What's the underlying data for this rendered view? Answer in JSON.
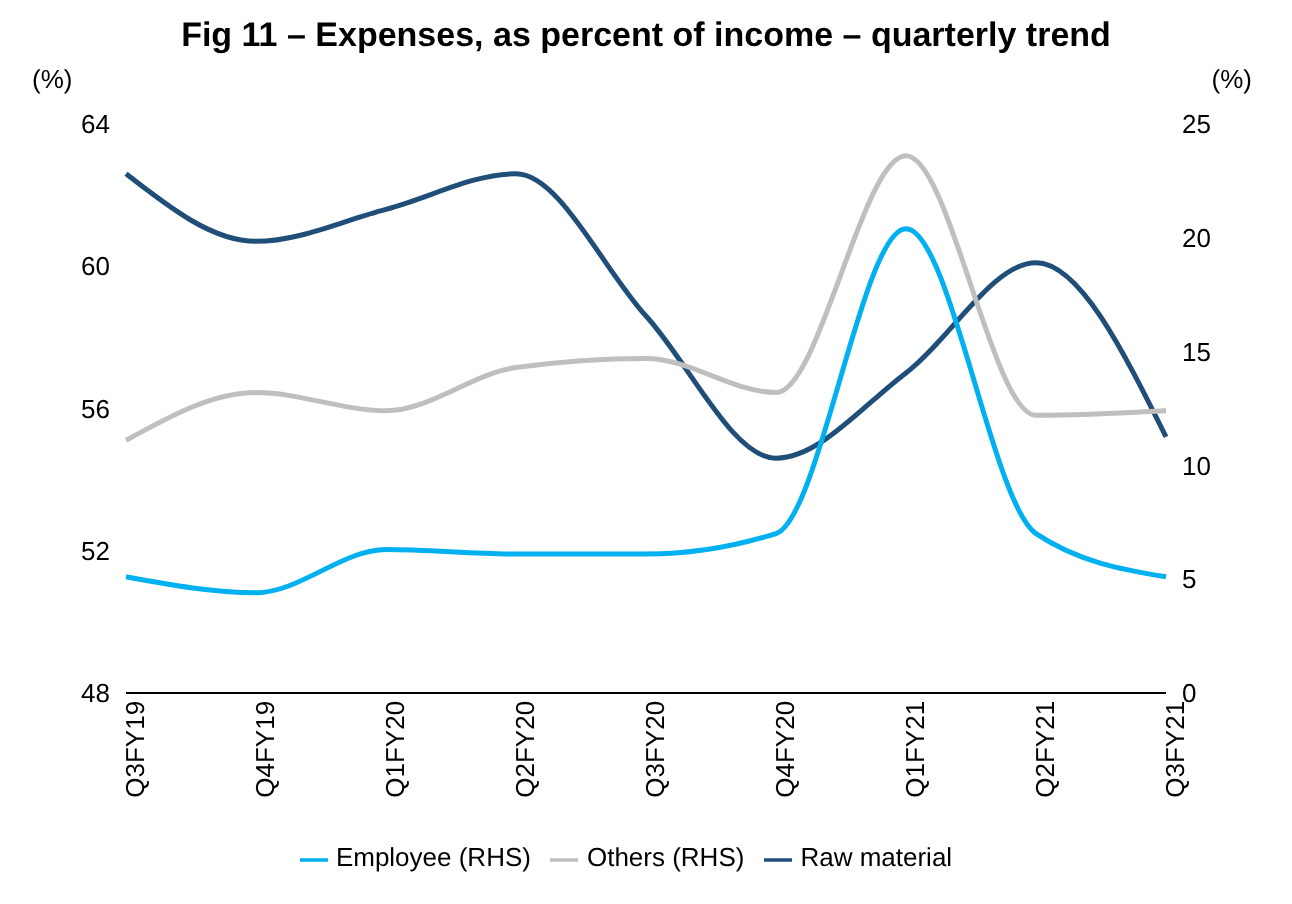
{
  "chart_data": {
    "type": "line",
    "title": "Fig 11 – Expenses, as percent of income – quarterly trend",
    "ylabel": "(%)",
    "y2label": "(%)",
    "categories": [
      "Q3FY19",
      "Q4FY19",
      "Q1FY20",
      "Q2FY20",
      "Q3FY20",
      "Q4FY20",
      "Q1FY21",
      "Q2FY21",
      "Q3FY21"
    ],
    "series": [
      {
        "name": "Raw material",
        "color": "#1f4e79",
        "values": [
          62.6,
          60.7,
          61.6,
          62.6,
          58.6,
          54.6,
          57.0,
          60.1,
          55.2
        ]
      },
      {
        "name": "Employee (RHS)",
        "color": "#00b0f0",
        "axis": "y2",
        "values": [
          5.1,
          4.4,
          6.3,
          6.1,
          6.1,
          7.0,
          20.4,
          7.0,
          5.1
        ]
      },
      {
        "name": "Others (RHS)",
        "color": "#bfbfbf",
        "axis": "y2",
        "values": [
          11.1,
          13.2,
          12.4,
          14.3,
          14.7,
          13.2,
          23.6,
          12.2,
          12.4
        ]
      }
    ],
    "ylim": [
      48,
      64
    ],
    "yticks": [
      48,
      52,
      56,
      60,
      64
    ],
    "y2lim": [
      0,
      25
    ],
    "y2ticks": [
      0,
      5,
      10,
      15,
      20,
      25
    ],
    "grid": false,
    "legend": "bottom",
    "marker": "none",
    "line_style": "solid"
  }
}
